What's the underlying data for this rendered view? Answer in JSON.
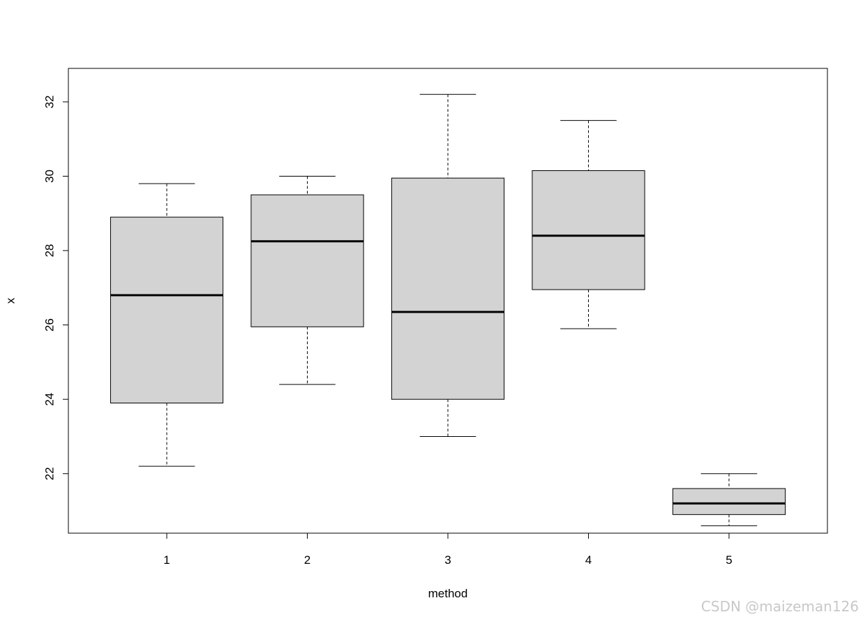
{
  "chart_data": {
    "type": "boxplot",
    "title": "",
    "xlabel": "method",
    "ylabel": "x",
    "categories": [
      "1",
      "2",
      "3",
      "4",
      "5"
    ],
    "yticks": [
      22,
      24,
      26,
      28,
      30,
      32
    ],
    "ylim": [
      20.4,
      32.9
    ],
    "grid": false,
    "legend": "none",
    "box_fill": "#d3d3d3",
    "line_color": "#000000",
    "boxes": [
      {
        "category": "1",
        "whisker_low": 22.2,
        "q1": 23.9,
        "median": 26.8,
        "q3": 28.9,
        "whisker_high": 29.8
      },
      {
        "category": "2",
        "whisker_low": 24.4,
        "q1": 25.95,
        "median": 28.25,
        "q3": 29.5,
        "whisker_high": 30.0
      },
      {
        "category": "3",
        "whisker_low": 23.0,
        "q1": 24.0,
        "median": 26.35,
        "q3": 29.95,
        "whisker_high": 32.2
      },
      {
        "category": "4",
        "whisker_low": 25.9,
        "q1": 26.95,
        "median": 28.4,
        "q3": 30.15,
        "whisker_high": 31.5
      },
      {
        "category": "5",
        "whisker_low": 20.6,
        "q1": 20.9,
        "median": 21.2,
        "q3": 21.6,
        "whisker_high": 22.0
      }
    ]
  },
  "watermark": "CSDN @maizeman126"
}
